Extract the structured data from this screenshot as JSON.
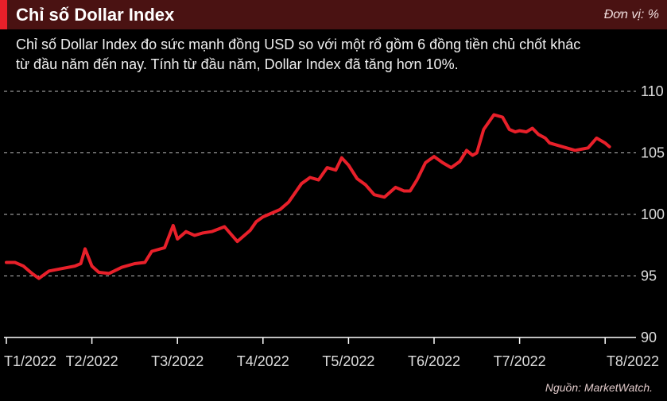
{
  "header": {
    "title": "Chỉ số Dollar Index",
    "unit": "Đơn vị: %",
    "description_line1": "Chỉ số Dollar Index đo sức mạnh đồng USD so với một rổ gồm 6 đồng tiền chủ chốt khác",
    "description_line2": "từ đầu năm đến nay. Tính từ đầu năm, Dollar Index đã tăng hơn 10%."
  },
  "colors": {
    "line": "#e8202a",
    "header_bg": "#4a1212",
    "accent": "#e8202a",
    "grid": "#bbbbbb"
  },
  "chart_data": {
    "type": "line",
    "xlabel": "",
    "ylabel": "",
    "ylim": [
      90,
      110
    ],
    "yticks": [
      110,
      105,
      100,
      95,
      90
    ],
    "grid": true,
    "xticks": [
      "T1/2022",
      "T2/2022",
      "T3/2022",
      "T4/2022",
      "T5/2022",
      "T6/2022",
      "T7/2022",
      "T8/2022"
    ],
    "series": [
      {
        "x": [
          0,
          0.1,
          0.2,
          0.3,
          0.38,
          0.5,
          0.65,
          0.8,
          0.87,
          0.92,
          1.0,
          1.08,
          1.2,
          1.35,
          1.5,
          1.62,
          1.7,
          1.85,
          1.95,
          2.0,
          2.1,
          2.2,
          2.3,
          2.4,
          2.55,
          2.7,
          2.85,
          2.92,
          3.0,
          3.1,
          3.2,
          3.3,
          3.45,
          3.55,
          3.65,
          3.75,
          3.85,
          3.92,
          4.0,
          4.1,
          4.2,
          4.3,
          4.42,
          4.55,
          4.65,
          4.72,
          4.8,
          4.9,
          5.0,
          5.1,
          5.2,
          5.3,
          5.38,
          5.45,
          5.5,
          5.58,
          5.7,
          5.8,
          5.88,
          5.95,
          6.0,
          6.08,
          6.15,
          6.22,
          6.3,
          6.35,
          6.45,
          6.55,
          6.65,
          6.8,
          6.9,
          7.0,
          7.05
        ],
        "values": [
          96.1,
          96.1,
          95.8,
          95.2,
          94.8,
          95.4,
          95.6,
          95.8,
          96.0,
          97.2,
          95.8,
          95.3,
          95.2,
          95.7,
          96.0,
          96.1,
          97.0,
          97.3,
          99.1,
          98.0,
          98.6,
          98.3,
          98.5,
          98.6,
          99.0,
          97.8,
          98.7,
          99.4,
          99.8,
          100.1,
          100.4,
          101.0,
          102.5,
          103.0,
          102.8,
          103.8,
          103.6,
          104.6,
          104.0,
          102.9,
          102.4,
          101.6,
          101.4,
          102.2,
          101.9,
          101.9,
          102.8,
          104.2,
          104.7,
          104.2,
          103.8,
          104.3,
          105.2,
          104.8,
          105.0,
          106.9,
          108.1,
          107.9,
          106.9,
          106.7,
          106.8,
          106.7,
          107.0,
          106.5,
          106.2,
          105.8,
          105.6,
          105.4,
          105.2,
          105.4,
          106.2,
          105.8,
          105.5
        ]
      }
    ]
  },
  "footer": {
    "source": "Nguồn: MarketWatch."
  }
}
